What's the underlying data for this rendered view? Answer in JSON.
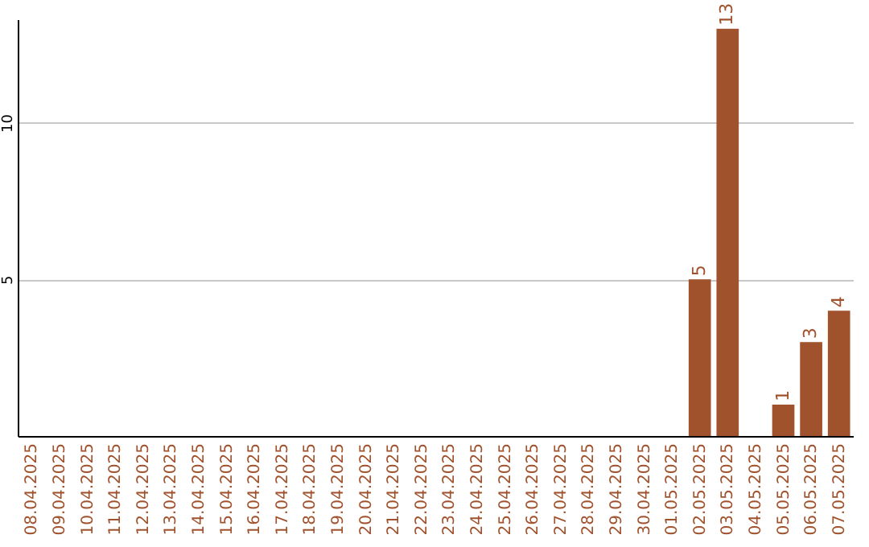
{
  "chart_data": {
    "type": "bar",
    "categories": [
      "08.04.2025",
      "09.04.2025",
      "10.04.2025",
      "11.04.2025",
      "12.04.2025",
      "13.04.2025",
      "14.04.2025",
      "15.04.2025",
      "16.04.2025",
      "17.04.2025",
      "18.04.2025",
      "19.04.2025",
      "20.04.2025",
      "21.04.2025",
      "22.04.2025",
      "23.04.2025",
      "24.04.2025",
      "25.04.2025",
      "26.04.2025",
      "27.04.2025",
      "28.04.2025",
      "29.04.2025",
      "30.04.2025",
      "01.05.2025",
      "02.05.2025",
      "03.05.2025",
      "04.05.2025",
      "05.05.2025",
      "06.05.2025",
      "07.05.2025"
    ],
    "values": [
      0,
      0,
      0,
      0,
      0,
      0,
      0,
      0,
      0,
      0,
      0,
      0,
      0,
      0,
      0,
      0,
      0,
      0,
      0,
      0,
      0,
      0,
      0,
      0,
      5,
      13,
      0,
      1,
      3,
      4
    ],
    "value_labels": [
      null,
      null,
      null,
      null,
      null,
      null,
      null,
      null,
      null,
      null,
      null,
      null,
      null,
      null,
      null,
      null,
      null,
      null,
      null,
      null,
      null,
      null,
      null,
      null,
      "5",
      "13",
      null,
      "1",
      "3",
      "4"
    ],
    "color": "#a0522d",
    "ylim": [
      0,
      13.3
    ],
    "yticks": [
      5,
      10
    ],
    "grid": "y"
  }
}
